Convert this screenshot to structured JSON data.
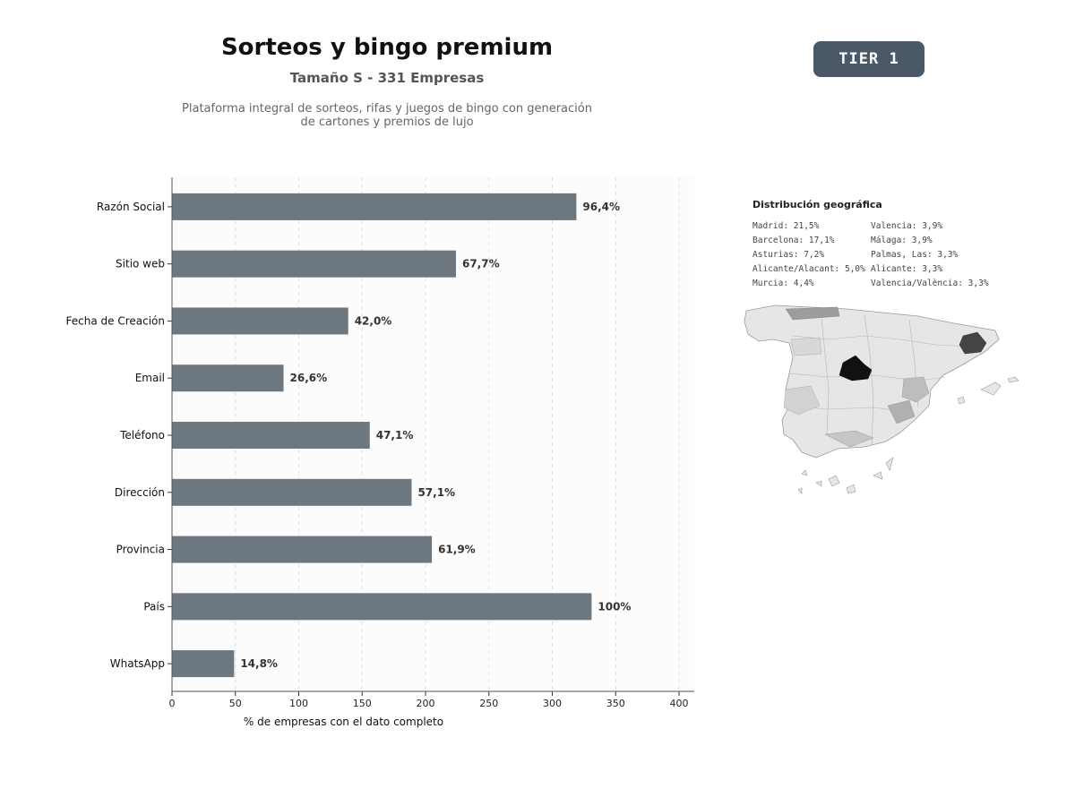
{
  "header": {
    "title": "Sorteos y bingo premium",
    "subtitle": "Tamaño S - 331 Empresas",
    "description_line1": "Plataforma integral de sorteos, rifas y juegos de bingo con generación",
    "description_line2": "de cartones y premios de lujo",
    "tier_badge": "TIER 1"
  },
  "colors": {
    "bar": "#6c7780",
    "badge": "#4b5967",
    "plot_bg": "#fcfcfc"
  },
  "chart_data": {
    "type": "bar",
    "orientation": "horizontal",
    "categories": [
      "Razón Social",
      "Sitio web",
      "Fecha de Creación",
      "Email",
      "Teléfono",
      "Dirección",
      "Provincia",
      "País",
      "WhatsApp"
    ],
    "values": [
      319,
      224,
      139,
      88,
      156,
      189,
      205,
      331,
      49
    ],
    "value_labels": [
      "96,4%",
      "67,7%",
      "42,0%",
      "26,6%",
      "47,1%",
      "57,1%",
      "61,9%",
      "100%",
      "14,8%"
    ],
    "xlabel": "% de empresas con el dato completo",
    "xlim": [
      0,
      412
    ],
    "xticks": [
      0,
      50,
      100,
      150,
      200,
      250,
      300,
      350,
      400
    ],
    "grid": "vertical dashed"
  },
  "geo": {
    "title": "Distribución geográfica",
    "left_column": [
      "Madrid: 21,5%",
      "Barcelona: 17,1%",
      "Asturias: 7,2%",
      "Alicante/Alacant: 5,0%",
      "Murcia: 4,4%"
    ],
    "right_column": [
      "Valencia: 3,9%",
      "Málaga: 3,9%",
      "Palmas, Las: 3,3%",
      "Alicante: 3,3%",
      "Valencia/València: 3,3%"
    ],
    "map_icon": "spain-provinces-map"
  }
}
